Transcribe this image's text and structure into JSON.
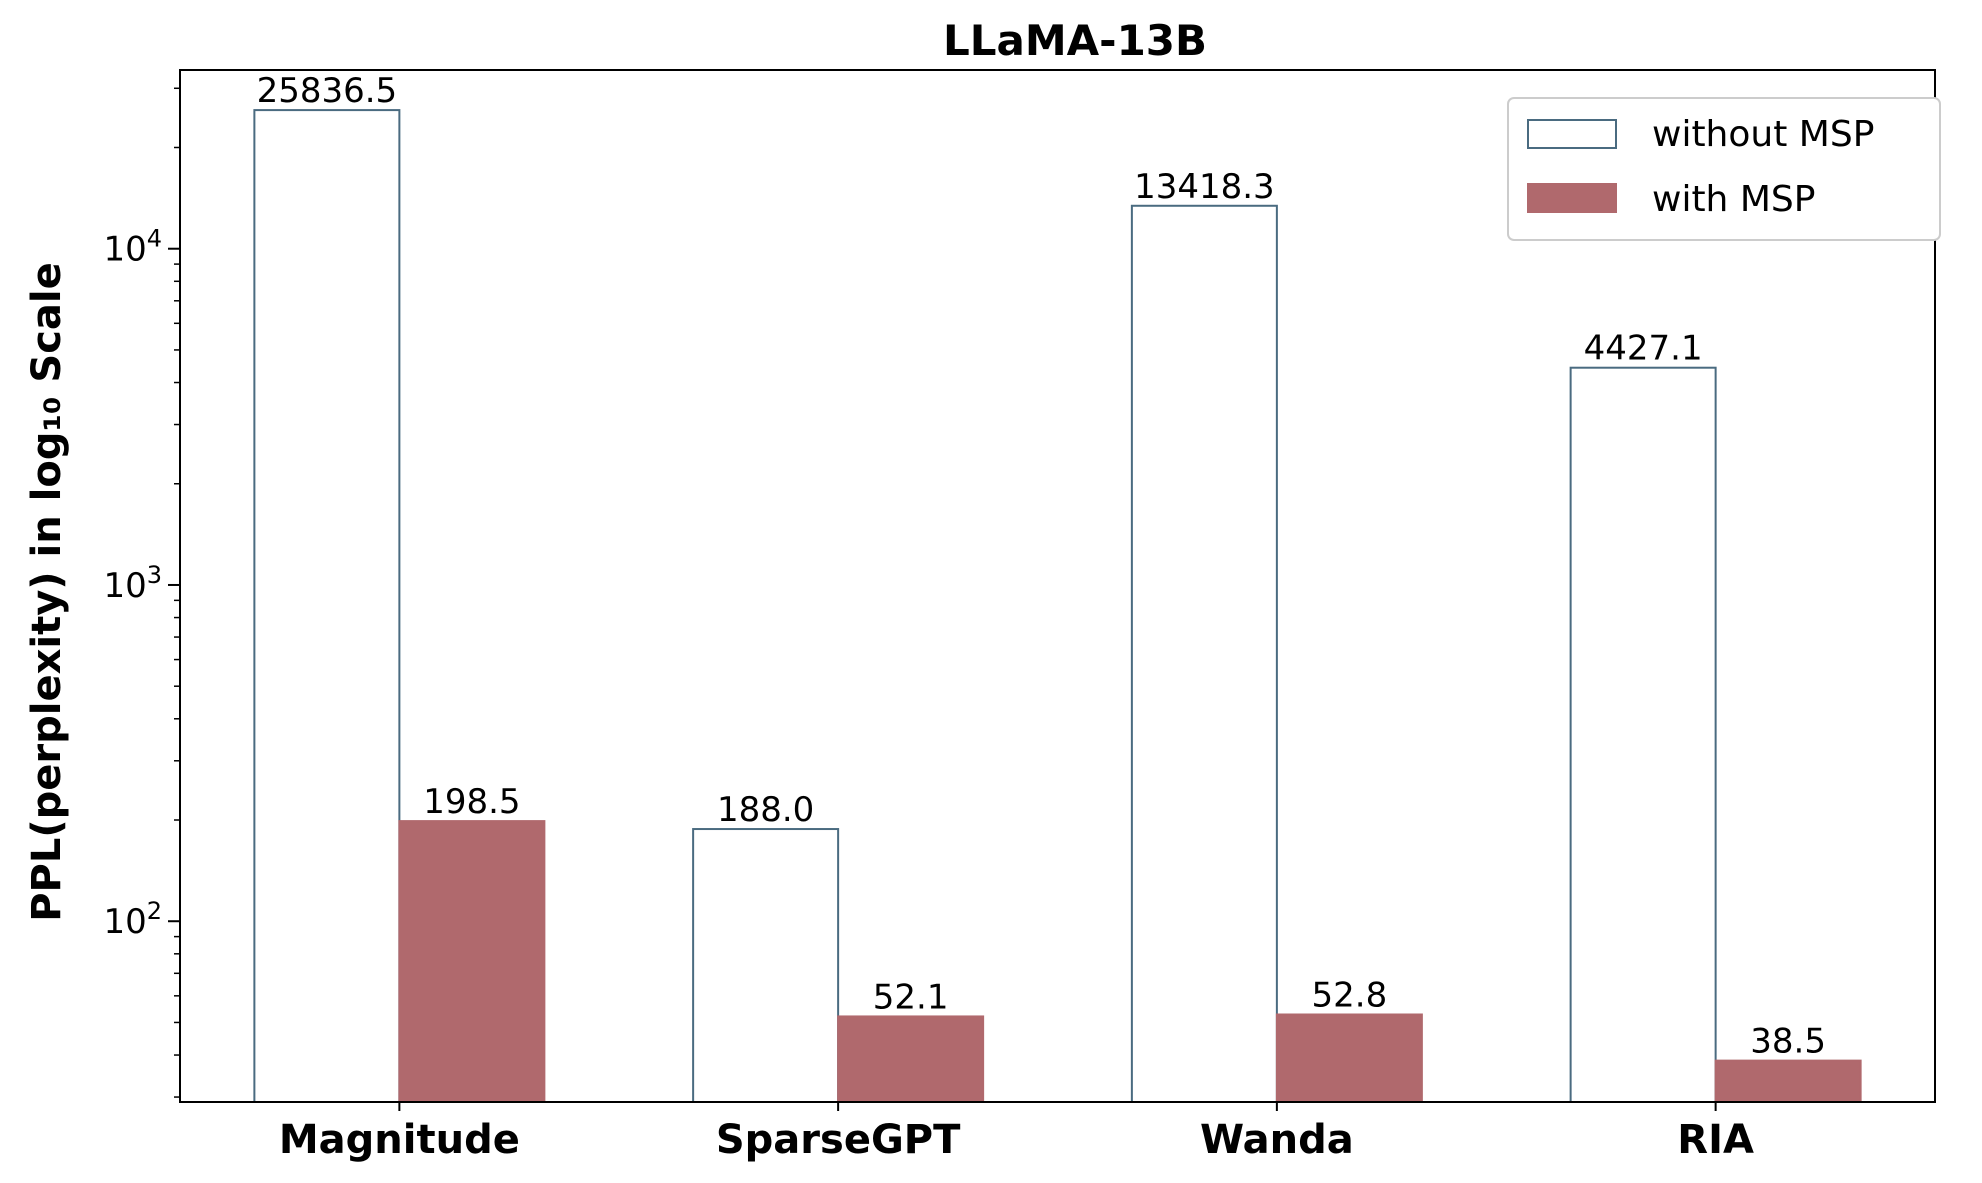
{
  "chart_data": {
    "type": "bar",
    "title": "LLaMA-13B",
    "xlabel": "",
    "ylabel": "PPL(perplexity) in log₁₀ Scale",
    "yscale": "log10",
    "ylim": [
      29,
      34000
    ],
    "categories": [
      "Magnitude",
      "SparseGPT",
      "Wanda",
      "RIA"
    ],
    "series": [
      {
        "name": "without MSP",
        "values": [
          25836.5,
          188.0,
          13418.3,
          4427.1
        ],
        "labels": [
          "25836.5",
          "188.0",
          "13418.3",
          "4427.1"
        ],
        "fill": "#ffffff",
        "edge": "#4a6b80"
      },
      {
        "name": "with MSP",
        "values": [
          198.5,
          52.1,
          52.8,
          38.5
        ],
        "labels": [
          "198.5",
          "52.1",
          "52.8",
          "38.5"
        ],
        "fill": "#b0696d",
        "edge": "#b0696d"
      }
    ],
    "yticks": [
      {
        "value": 100,
        "base": "10",
        "exp": "2"
      },
      {
        "value": 1000,
        "base": "10",
        "exp": "3"
      },
      {
        "value": 10000,
        "base": "10",
        "exp": "4"
      }
    ],
    "legend": {
      "position": "top-right",
      "entries": [
        "without MSP",
        "with MSP"
      ]
    },
    "grid": false
  }
}
